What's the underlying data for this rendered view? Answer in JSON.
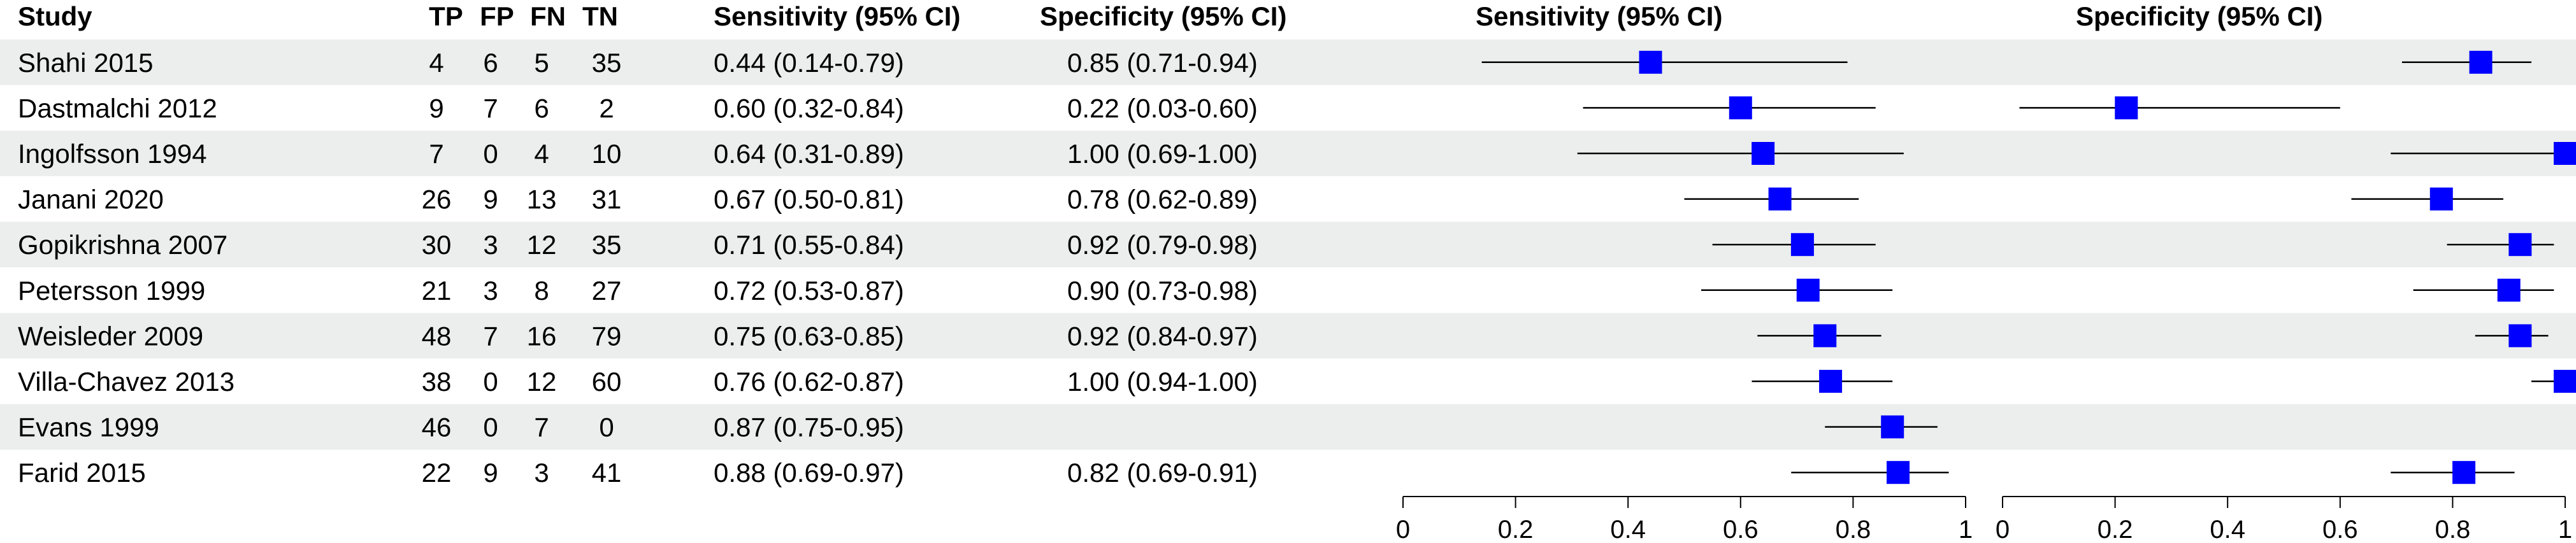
{
  "headers": {
    "study": "Study",
    "tp": "TP",
    "fp": "FP",
    "fn": "FN",
    "tn": "TN",
    "sens": "Sensitivity (95% CI)",
    "spec": "Specificity (95% CI)"
  },
  "colors": {
    "marker": "#0000ff",
    "stripe": "#ebeeec",
    "line": "#000000"
  },
  "rows": [
    {
      "study": "Shahi 2015",
      "tp": "4",
      "fp": "6",
      "fn": "5",
      "tn": "35",
      "sens_text": "0.44 (0.14-0.79)",
      "spec_text": "0.85 (0.71-0.94)"
    },
    {
      "study": "Dastmalchi 2012",
      "tp": "9",
      "fp": "7",
      "fn": "6",
      "tn": "2",
      "sens_text": "0.60 (0.32-0.84)",
      "spec_text": "0.22 (0.03-0.60)"
    },
    {
      "study": "Ingolfsson 1994",
      "tp": "7",
      "fp": "0",
      "fn": "4",
      "tn": "10",
      "sens_text": "0.64 (0.31-0.89)",
      "spec_text": "1.00 (0.69-1.00)"
    },
    {
      "study": "Janani 2020",
      "tp": "26",
      "fp": "9",
      "fn": "13",
      "tn": "31",
      "sens_text": "0.67 (0.50-0.81)",
      "spec_text": "0.78 (0.62-0.89)"
    },
    {
      "study": "Gopikrishna 2007",
      "tp": "30",
      "fp": "3",
      "fn": "12",
      "tn": "35",
      "sens_text": "0.71 (0.55-0.84)",
      "spec_text": "0.92 (0.79-0.98)"
    },
    {
      "study": "Petersson 1999",
      "tp": "21",
      "fp": "3",
      "fn": "8",
      "tn": "27",
      "sens_text": "0.72 (0.53-0.87)",
      "spec_text": "0.90 (0.73-0.98)"
    },
    {
      "study": "Weisleder 2009",
      "tp": "48",
      "fp": "7",
      "fn": "16",
      "tn": "79",
      "sens_text": "0.75 (0.63-0.85)",
      "spec_text": "0.92 (0.84-0.97)"
    },
    {
      "study": "Villa-Chavez 2013",
      "tp": "38",
      "fp": "0",
      "fn": "12",
      "tn": "60",
      "sens_text": "0.76 (0.62-0.87)",
      "spec_text": "1.00 (0.94-1.00)"
    },
    {
      "study": "Evans 1999",
      "tp": "46",
      "fp": "0",
      "fn": "7",
      "tn": "0",
      "sens_text": "0.87 (0.75-0.95)",
      "spec_text": ""
    },
    {
      "study": "Farid 2015",
      "tp": "22",
      "fp": "9",
      "fn": "3",
      "tn": "41",
      "sens_text": "0.88 (0.69-0.97)",
      "spec_text": "0.82 (0.69-0.91)"
    }
  ],
  "chart_data": [
    {
      "type": "scatter",
      "panel": "sensitivity",
      "title": "Sensitivity (95% CI)",
      "xlim": [
        0,
        1
      ],
      "ticks": [
        0,
        0.2,
        0.4,
        0.6,
        0.8,
        1
      ],
      "tick_labels": [
        "0",
        "0.2",
        "0.4",
        "0.6",
        "0.8",
        "1"
      ],
      "grid": false,
      "categories": [
        "Shahi 2015",
        "Dastmalchi 2012",
        "Ingolfsson 1994",
        "Janani 2020",
        "Gopikrishna 2007",
        "Petersson 1999",
        "Weisleder 2009",
        "Villa-Chavez 2013",
        "Evans 1999",
        "Farid 2015"
      ],
      "values": [
        0.44,
        0.6,
        0.64,
        0.67,
        0.71,
        0.72,
        0.75,
        0.76,
        0.87,
        0.88
      ],
      "lower": [
        0.14,
        0.32,
        0.31,
        0.5,
        0.55,
        0.53,
        0.63,
        0.62,
        0.75,
        0.69
      ],
      "upper": [
        0.79,
        0.84,
        0.89,
        0.81,
        0.84,
        0.87,
        0.85,
        0.87,
        0.95,
        0.97
      ]
    },
    {
      "type": "scatter",
      "panel": "specificity",
      "title": "Specificity (95% CI)",
      "xlim": [
        0,
        1
      ],
      "ticks": [
        0,
        0.2,
        0.4,
        0.6,
        0.8,
        1
      ],
      "tick_labels": [
        "0",
        "0.2",
        "0.4",
        "0.6",
        "0.8",
        "1"
      ],
      "grid": false,
      "categories": [
        "Shahi 2015",
        "Dastmalchi 2012",
        "Ingolfsson 1994",
        "Janani 2020",
        "Gopikrishna 2007",
        "Petersson 1999",
        "Weisleder 2009",
        "Villa-Chavez 2013",
        "Evans 1999",
        "Farid 2015"
      ],
      "values": [
        0.85,
        0.22,
        1.0,
        0.78,
        0.92,
        0.9,
        0.92,
        1.0,
        null,
        0.82
      ],
      "lower": [
        0.71,
        0.03,
        0.69,
        0.62,
        0.79,
        0.73,
        0.84,
        0.94,
        null,
        0.69
      ],
      "upper": [
        0.94,
        0.6,
        1.0,
        0.89,
        0.98,
        0.98,
        0.97,
        1.0,
        null,
        0.91
      ]
    }
  ]
}
